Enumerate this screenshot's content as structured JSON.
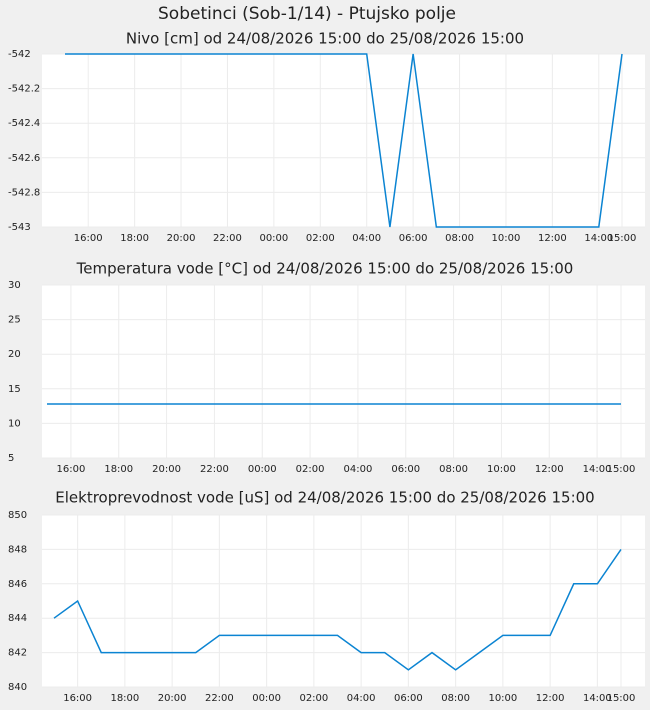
{
  "title": "Sobetinci (Sob-1/14) - Ptujsko polje",
  "chart_data": [
    {
      "type": "line",
      "title": "Nivo [cm] od 24/08/2026 15:00 do 25/08/2026 15:00",
      "categories": [
        null,
        "16:00",
        null,
        "18:00",
        null,
        "20:00",
        null,
        "22:00",
        null,
        "00:00",
        null,
        "02:00",
        null,
        "04:00",
        null,
        "06:00",
        null,
        "08:00",
        null,
        "10:00",
        null,
        "12:00",
        null,
        "14:00",
        "15:00"
      ],
      "series": [
        {
          "color": "#0b84d2",
          "values": [
            -542,
            -542,
            -542,
            -542,
            -542,
            -542,
            -542,
            -542,
            -542,
            -542,
            -542,
            -542,
            -542,
            -542,
            -543,
            -542,
            -543,
            -543,
            -543,
            -543,
            -543,
            -543,
            -543,
            -543,
            -542
          ]
        }
      ],
      "ylim": [
        -543,
        -542
      ],
      "yticks": [
        -543,
        -542.8,
        -542.6,
        -542.4,
        -542.2,
        -542
      ],
      "grid": true
    },
    {
      "type": "line",
      "title": "Temperatura vode [°C] od 24/08/2026 15:00 do 25/08/2026 15:00",
      "categories": [
        null,
        "16:00",
        null,
        "18:00",
        null,
        "20:00",
        null,
        "22:00",
        null,
        "00:00",
        null,
        "02:00",
        null,
        "04:00",
        null,
        "06:00",
        null,
        "08:00",
        null,
        "10:00",
        null,
        "12:00",
        null,
        "14:00",
        "15:00"
      ],
      "series": [
        {
          "color": "#0b84d2",
          "values": [
            12.8,
            12.8,
            12.8,
            12.8,
            12.8,
            12.8,
            12.8,
            12.8,
            12.8,
            12.8,
            12.8,
            12.8,
            12.8,
            12.8,
            12.8,
            12.8,
            12.8,
            12.8,
            12.8,
            12.8,
            12.8,
            12.8,
            12.8,
            12.8,
            12.8
          ]
        }
      ],
      "ylim": [
        5,
        30
      ],
      "yticks": [
        5,
        10,
        15,
        20,
        25,
        30
      ],
      "grid": true
    },
    {
      "type": "line",
      "title": "Elektroprevodnost vode [uS] od 24/08/2026 15:00 do 25/08/2026 15:00",
      "categories": [
        null,
        "16:00",
        null,
        "18:00",
        null,
        "20:00",
        null,
        "22:00",
        null,
        "00:00",
        null,
        "02:00",
        null,
        "04:00",
        null,
        "06:00",
        null,
        "08:00",
        null,
        "10:00",
        null,
        "12:00",
        null,
        "14:00",
        "15:00"
      ],
      "series": [
        {
          "color": "#0b84d2",
          "values": [
            844,
            845,
            842,
            842,
            842,
            842,
            842,
            843,
            843,
            843,
            843,
            843,
            843,
            842,
            842,
            841,
            842,
            841,
            842,
            843,
            843,
            843,
            846,
            846,
            848
          ]
        }
      ],
      "ylim": [
        840,
        850
      ],
      "yticks": [
        840,
        842,
        844,
        846,
        848,
        850
      ],
      "grid": true
    }
  ]
}
